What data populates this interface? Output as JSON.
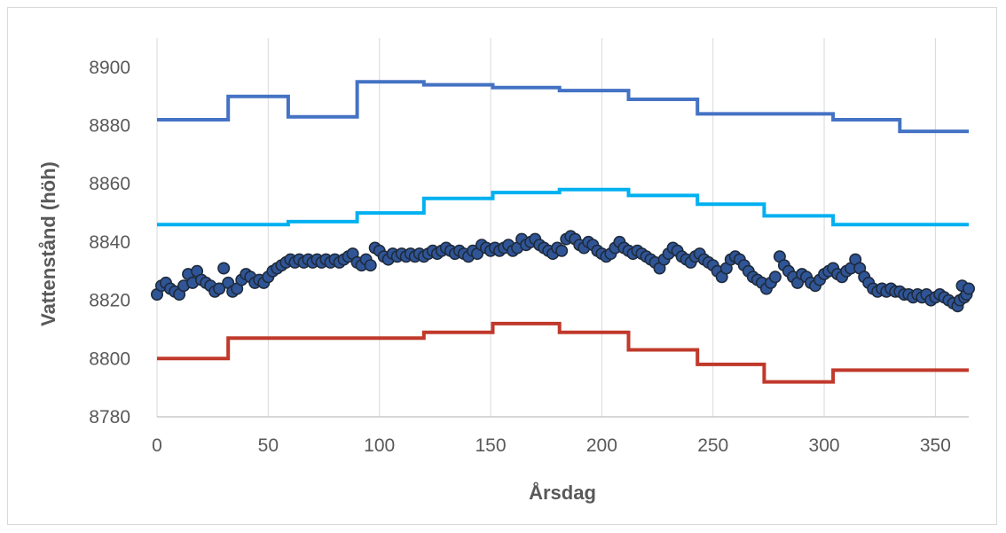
{
  "chart_data": {
    "type": "line",
    "title": "",
    "xlabel": "Årsdag",
    "ylabel": "Vattenstånd (höh)",
    "xlim": [
      0,
      365
    ],
    "ylim": [
      8780,
      8910
    ],
    "x_ticks": [
      0,
      50,
      100,
      150,
      200,
      250,
      300,
      350
    ],
    "y_ticks": [
      8780,
      8800,
      8820,
      8840,
      8860,
      8880,
      8900
    ],
    "grid": "vertical",
    "legend": "none",
    "series": [
      {
        "kind": "step",
        "color": "#4472c4",
        "points": [
          [
            0,
            8882
          ],
          [
            32,
            8882
          ],
          [
            32,
            8890
          ],
          [
            59,
            8890
          ],
          [
            59,
            8883
          ],
          [
            90,
            8883
          ],
          [
            90,
            8895
          ],
          [
            120,
            8895
          ],
          [
            120,
            8894
          ],
          [
            151,
            8894
          ],
          [
            151,
            8893
          ],
          [
            181,
            8893
          ],
          [
            181,
            8892
          ],
          [
            212,
            8892
          ],
          [
            212,
            8889
          ],
          [
            243,
            8889
          ],
          [
            243,
            8884
          ],
          [
            304,
            8884
          ],
          [
            304,
            8882
          ],
          [
            334,
            8882
          ],
          [
            334,
            8878
          ],
          [
            365,
            8878
          ]
        ]
      },
      {
        "kind": "step",
        "color": "#00b0f0",
        "points": [
          [
            0,
            8846
          ],
          [
            59,
            8846
          ],
          [
            59,
            8847
          ],
          [
            90,
            8847
          ],
          [
            90,
            8850
          ],
          [
            120,
            8850
          ],
          [
            120,
            8855
          ],
          [
            151,
            8855
          ],
          [
            151,
            8857
          ],
          [
            181,
            8857
          ],
          [
            181,
            8858
          ],
          [
            212,
            8858
          ],
          [
            212,
            8856
          ],
          [
            243,
            8856
          ],
          [
            243,
            8853
          ],
          [
            273,
            8853
          ],
          [
            273,
            8849
          ],
          [
            304,
            8849
          ],
          [
            304,
            8846
          ],
          [
            365,
            8846
          ]
        ]
      },
      {
        "kind": "step",
        "color": "#c0392b",
        "points": [
          [
            0,
            8800
          ],
          [
            32,
            8800
          ],
          [
            32,
            8807
          ],
          [
            120,
            8807
          ],
          [
            120,
            8809
          ],
          [
            151,
            8809
          ],
          [
            151,
            8812
          ],
          [
            181,
            8812
          ],
          [
            181,
            8809
          ],
          [
            212,
            8809
          ],
          [
            212,
            8803
          ],
          [
            243,
            8803
          ],
          [
            243,
            8798
          ],
          [
            273,
            8798
          ],
          [
            273,
            8792
          ],
          [
            304,
            8792
          ],
          [
            304,
            8796
          ],
          [
            365,
            8796
          ]
        ]
      },
      {
        "kind": "scatter",
        "color": "#2f5597",
        "edge_color": "#1f2a3a",
        "points": [
          [
            0,
            8822
          ],
          [
            2,
            8825
          ],
          [
            4,
            8826
          ],
          [
            6,
            8824
          ],
          [
            8,
            8823
          ],
          [
            10,
            8822
          ],
          [
            12,
            8825
          ],
          [
            14,
            8829
          ],
          [
            16,
            8826
          ],
          [
            18,
            8830
          ],
          [
            20,
            8827
          ],
          [
            22,
            8826
          ],
          [
            24,
            8825
          ],
          [
            26,
            8823
          ],
          [
            28,
            8824
          ],
          [
            30,
            8831
          ],
          [
            32,
            8826
          ],
          [
            34,
            8823
          ],
          [
            36,
            8824
          ],
          [
            38,
            8827
          ],
          [
            40,
            8829
          ],
          [
            42,
            8828
          ],
          [
            44,
            8826
          ],
          [
            46,
            8827
          ],
          [
            48,
            8826
          ],
          [
            50,
            8828
          ],
          [
            52,
            8830
          ],
          [
            54,
            8831
          ],
          [
            56,
            8832
          ],
          [
            58,
            8833
          ],
          [
            60,
            8834
          ],
          [
            62,
            8833
          ],
          [
            64,
            8834
          ],
          [
            66,
            8833
          ],
          [
            68,
            8834
          ],
          [
            70,
            8833
          ],
          [
            72,
            8834
          ],
          [
            74,
            8833
          ],
          [
            76,
            8834
          ],
          [
            78,
            8833
          ],
          [
            80,
            8834
          ],
          [
            82,
            8833
          ],
          [
            84,
            8834
          ],
          [
            86,
            8835
          ],
          [
            88,
            8836
          ],
          [
            90,
            8833
          ],
          [
            92,
            8832
          ],
          [
            94,
            8834
          ],
          [
            96,
            8832
          ],
          [
            98,
            8838
          ],
          [
            100,
            8837
          ],
          [
            102,
            8835
          ],
          [
            104,
            8834
          ],
          [
            106,
            8836
          ],
          [
            108,
            8835
          ],
          [
            110,
            8836
          ],
          [
            112,
            8835
          ],
          [
            114,
            8836
          ],
          [
            116,
            8835
          ],
          [
            118,
            8836
          ],
          [
            120,
            8835
          ],
          [
            122,
            8836
          ],
          [
            124,
            8837
          ],
          [
            126,
            8836
          ],
          [
            128,
            8837
          ],
          [
            130,
            8838
          ],
          [
            132,
            8837
          ],
          [
            134,
            8836
          ],
          [
            136,
            8837
          ],
          [
            138,
            8836
          ],
          [
            140,
            8835
          ],
          [
            142,
            8837
          ],
          [
            144,
            8836
          ],
          [
            146,
            8839
          ],
          [
            148,
            8838
          ],
          [
            150,
            8837
          ],
          [
            152,
            8838
          ],
          [
            154,
            8837
          ],
          [
            156,
            8838
          ],
          [
            158,
            8839
          ],
          [
            160,
            8837
          ],
          [
            162,
            8838
          ],
          [
            164,
            8841
          ],
          [
            166,
            8839
          ],
          [
            168,
            8840
          ],
          [
            170,
            8841
          ],
          [
            172,
            8839
          ],
          [
            174,
            8838
          ],
          [
            176,
            8837
          ],
          [
            178,
            8836
          ],
          [
            180,
            8838
          ],
          [
            182,
            8837
          ],
          [
            184,
            8841
          ],
          [
            186,
            8842
          ],
          [
            188,
            8841
          ],
          [
            190,
            8839
          ],
          [
            192,
            8838
          ],
          [
            194,
            8840
          ],
          [
            196,
            8839
          ],
          [
            198,
            8837
          ],
          [
            200,
            8836
          ],
          [
            202,
            8835
          ],
          [
            204,
            8836
          ],
          [
            206,
            8838
          ],
          [
            208,
            8840
          ],
          [
            210,
            8838
          ],
          [
            212,
            8837
          ],
          [
            214,
            8836
          ],
          [
            216,
            8837
          ],
          [
            218,
            8836
          ],
          [
            220,
            8835
          ],
          [
            222,
            8834
          ],
          [
            224,
            8833
          ],
          [
            226,
            8831
          ],
          [
            228,
            8834
          ],
          [
            230,
            8836
          ],
          [
            232,
            8838
          ],
          [
            234,
            8837
          ],
          [
            236,
            8835
          ],
          [
            238,
            8834
          ],
          [
            240,
            8833
          ],
          [
            242,
            8835
          ],
          [
            244,
            8836
          ],
          [
            246,
            8834
          ],
          [
            248,
            8833
          ],
          [
            250,
            8832
          ],
          [
            252,
            8830
          ],
          [
            254,
            8828
          ],
          [
            256,
            8831
          ],
          [
            258,
            8834
          ],
          [
            260,
            8835
          ],
          [
            262,
            8834
          ],
          [
            264,
            8832
          ],
          [
            266,
            8830
          ],
          [
            268,
            8828
          ],
          [
            270,
            8827
          ],
          [
            272,
            8826
          ],
          [
            274,
            8824
          ],
          [
            276,
            8826
          ],
          [
            278,
            8828
          ],
          [
            280,
            8835
          ],
          [
            282,
            8832
          ],
          [
            284,
            8830
          ],
          [
            286,
            8828
          ],
          [
            288,
            8826
          ],
          [
            290,
            8829
          ],
          [
            292,
            8828
          ],
          [
            294,
            8826
          ],
          [
            296,
            8825
          ],
          [
            298,
            8827
          ],
          [
            300,
            8829
          ],
          [
            302,
            8830
          ],
          [
            304,
            8831
          ],
          [
            306,
            8829
          ],
          [
            308,
            8828
          ],
          [
            310,
            8830
          ],
          [
            312,
            8831
          ],
          [
            314,
            8834
          ],
          [
            316,
            8831
          ],
          [
            318,
            8828
          ],
          [
            320,
            8826
          ],
          [
            322,
            8824
          ],
          [
            324,
            8823
          ],
          [
            326,
            8824
          ],
          [
            328,
            8823
          ],
          [
            330,
            8824
          ],
          [
            332,
            8823
          ],
          [
            334,
            8823
          ],
          [
            336,
            8822
          ],
          [
            338,
            8822
          ],
          [
            340,
            8821
          ],
          [
            342,
            8822
          ],
          [
            344,
            8821
          ],
          [
            346,
            8822
          ],
          [
            348,
            8820
          ],
          [
            350,
            8821
          ],
          [
            352,
            8822
          ],
          [
            354,
            8821
          ],
          [
            356,
            8820
          ],
          [
            358,
            8819
          ],
          [
            360,
            8818
          ],
          [
            361,
            8820
          ],
          [
            362,
            8825
          ],
          [
            363,
            8821
          ],
          [
            364,
            8822
          ],
          [
            365,
            8824
          ]
        ]
      }
    ]
  }
}
